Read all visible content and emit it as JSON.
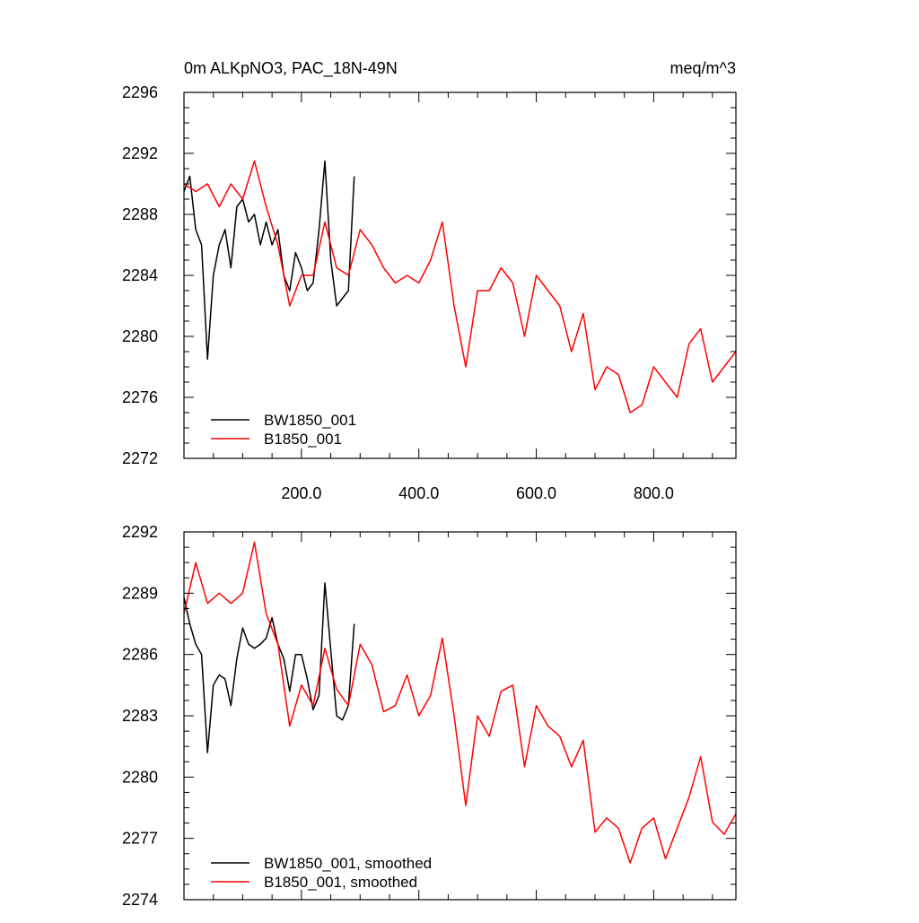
{
  "chart_data": [
    {
      "type": "line",
      "title_left": "0m ALKpNO3, PAC_18N-49N",
      "title_right": "meq/m^3",
      "xlabel": "",
      "ylabel": "",
      "xlim": [
        0,
        940
      ],
      "ylim": [
        2272,
        2296
      ],
      "yticks": [
        2272,
        2276,
        2280,
        2284,
        2288,
        2292,
        2296
      ],
      "ytick_labels": [
        "2272",
        "2276",
        "2280",
        "2284",
        "2288",
        "2292",
        "2296"
      ],
      "xticks": [
        200,
        400,
        600,
        800
      ],
      "xtick_labels": [
        "200.0",
        "400.0",
        "600.0",
        "800.0"
      ],
      "legend_position": "bottom-left",
      "grid": false,
      "series": [
        {
          "name": "BW1850_001",
          "color": "#000000",
          "x": [
            0,
            10,
            20,
            30,
            40,
            50,
            60,
            70,
            80,
            90,
            100,
            110,
            120,
            130,
            140,
            150,
            160,
            170,
            180,
            190,
            200,
            210,
            220,
            230,
            240,
            250,
            260,
            270,
            280,
            290
          ],
          "values": [
            2289.5,
            2290.5,
            2287,
            2286,
            2278.5,
            2284,
            2286,
            2287,
            2284.5,
            2288.5,
            2289,
            2287.5,
            2288,
            2286,
            2287.5,
            2286,
            2287,
            2284,
            2283,
            2285.5,
            2284.5,
            2283,
            2283.5,
            2287,
            2291.5,
            2285,
            2282,
            2282.5,
            2283,
            2290.5
          ]
        },
        {
          "name": "B1850_001",
          "color": "#ff0000",
          "x": [
            0,
            20,
            40,
            60,
            80,
            100,
            120,
            140,
            160,
            180,
            200,
            220,
            240,
            260,
            280,
            300,
            320,
            340,
            360,
            380,
            400,
            420,
            440,
            460,
            480,
            500,
            520,
            540,
            560,
            580,
            600,
            620,
            640,
            660,
            680,
            700,
            720,
            740,
            760,
            780,
            800,
            820,
            840,
            860,
            880,
            900,
            920,
            940
          ],
          "values": [
            2290,
            2289.5,
            2290,
            2288.5,
            2290,
            2289,
            2291.5,
            2288.5,
            2286,
            2282,
            2284,
            2284,
            2287.5,
            2284.5,
            2284,
            2287,
            2286,
            2284.5,
            2283.5,
            2284,
            2283.5,
            2285,
            2287.5,
            2282,
            2278,
            2283,
            2283,
            2284.5,
            2283.5,
            2280,
            2284,
            2283,
            2282,
            2279,
            2281.5,
            2276.5,
            2278,
            2277.5,
            2275,
            2275.5,
            2278,
            2277,
            2276,
            2279.5,
            2280.5,
            2277,
            2278,
            2279
          ]
        }
      ]
    },
    {
      "type": "line",
      "xlabel": "",
      "ylabel": "",
      "xlim": [
        0,
        940
      ],
      "ylim": [
        2274,
        2292
      ],
      "yticks": [
        2274,
        2277,
        2280,
        2283,
        2286,
        2289,
        2292
      ],
      "ytick_labels": [
        "2274",
        "2277",
        "2280",
        "2283",
        "2286",
        "2289",
        "2292"
      ],
      "legend_position": "bottom-left",
      "grid": false,
      "series": [
        {
          "name": "BW1850_001, smoothed",
          "color": "#000000",
          "x": [
            0,
            10,
            20,
            30,
            40,
            50,
            60,
            70,
            80,
            90,
            100,
            110,
            120,
            130,
            140,
            150,
            160,
            170,
            180,
            190,
            200,
            210,
            220,
            230,
            240,
            250,
            260,
            270,
            280,
            290
          ],
          "values": [
            2288.8,
            2287.5,
            2286.5,
            2286,
            2281.2,
            2284.5,
            2285,
            2284.8,
            2283.5,
            2285.8,
            2287.3,
            2286.5,
            2286.3,
            2286.5,
            2286.8,
            2287.8,
            2286.5,
            2285.8,
            2284.2,
            2286,
            2286,
            2284.8,
            2283.3,
            2284,
            2289.5,
            2286.2,
            2283,
            2282.8,
            2283.5,
            2287.5
          ]
        },
        {
          "name": "B1850_001, smoothed",
          "color": "#ff0000",
          "x": [
            0,
            20,
            40,
            60,
            80,
            100,
            120,
            140,
            160,
            180,
            200,
            220,
            240,
            260,
            280,
            300,
            320,
            340,
            360,
            380,
            400,
            420,
            440,
            460,
            480,
            500,
            520,
            540,
            560,
            580,
            600,
            620,
            640,
            660,
            680,
            700,
            720,
            740,
            760,
            780,
            800,
            820,
            840,
            860,
            880,
            900,
            920,
            940
          ],
          "values": [
            2288,
            2290.5,
            2288.5,
            2289,
            2288.5,
            2289,
            2291.5,
            2288,
            2286.5,
            2282.5,
            2284.5,
            2283.5,
            2286.3,
            2284.3,
            2283.5,
            2286.5,
            2285.5,
            2283.2,
            2283.5,
            2285,
            2283,
            2284,
            2286.8,
            2283,
            2278.6,
            2283,
            2282,
            2284.2,
            2284.5,
            2280.5,
            2283.5,
            2282.5,
            2282,
            2280.5,
            2281.8,
            2277.3,
            2278,
            2277.5,
            2275.8,
            2277.5,
            2278,
            2276,
            2277.5,
            2279,
            2281,
            2277.8,
            2277.2,
            2278.2
          ]
        }
      ]
    }
  ]
}
